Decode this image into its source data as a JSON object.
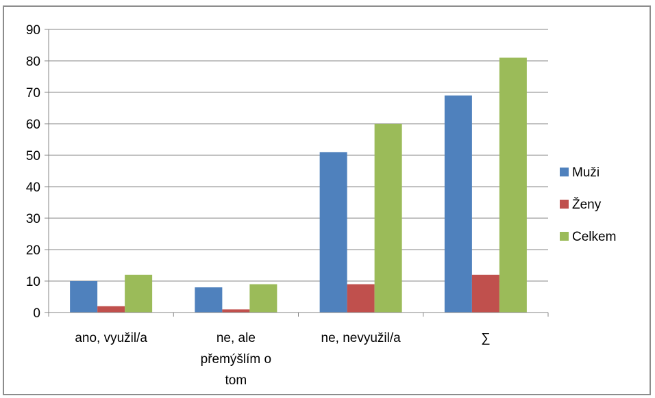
{
  "chart_data": {
    "type": "bar",
    "categories": [
      "ano, využil/a",
      "ne, ale přemýšlím o tom",
      "ne, nevyužil/a",
      "∑"
    ],
    "category_lines": [
      [
        "ano, využil/a"
      ],
      [
        "ne, ale",
        "přemýšlím o",
        "tom"
      ],
      [
        "ne, nevyužil/a"
      ],
      [
        "∑"
      ]
    ],
    "series": [
      {
        "name": "Muži",
        "values": [
          10,
          8,
          51,
          69
        ],
        "color": "#4f81bd"
      },
      {
        "name": "Ženy",
        "values": [
          2,
          1,
          9,
          12
        ],
        "color": "#c0504d"
      },
      {
        "name": "Celkem",
        "values": [
          12,
          9,
          60,
          81
        ],
        "color": "#9bbb59"
      }
    ],
    "ylim": [
      0,
      90
    ],
    "yticks": [
      "0",
      "10",
      "20",
      "30",
      "40",
      "50",
      "60",
      "70",
      "80",
      "90"
    ],
    "grid": true,
    "legend_position": "right"
  }
}
